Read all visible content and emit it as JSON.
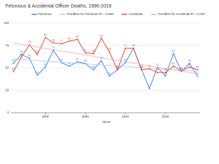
{
  "chart_data": {
    "type": "line",
    "title": "Felonious & Accidental Officer Deaths, 1996-2019",
    "x_label": "YEAR",
    "x": [
      1996,
      1997,
      1998,
      1999,
      2000,
      2001,
      2002,
      2003,
      2004,
      2005,
      2006,
      2007,
      2008,
      2009,
      2010,
      2011,
      2012,
      2013,
      2014,
      2015,
      2016,
      2017,
      2018,
      2019
    ],
    "xlim": [
      1995.7,
      2019.3
    ],
    "xticks": [
      2000,
      2005,
      2010,
      2015
    ],
    "ylim": [
      0,
      100
    ],
    "yticks": [
      0,
      25,
      50,
      75,
      100
    ],
    "grid": true,
    "legend": "top",
    "series": [
      {
        "name": "Felonious",
        "color": "#4285f4",
        "labels": true,
        "values": [
          55,
          65,
          61,
          42,
          51,
          70,
          56,
          52,
          57,
          55,
          48,
          58,
          41,
          48,
          56,
          72,
          49,
          27,
          51,
          41,
          66,
          46,
          55,
          41
        ]
      },
      {
        "name": "Trendline for Felonious R² = 0.663",
        "color": "#a9c6f8",
        "labels": false,
        "values": [
          60,
          59.4,
          58.8,
          58.2,
          57.6,
          57,
          56.4,
          55.8,
          55.2,
          54.6,
          54,
          53.4,
          52.8,
          52.2,
          51.6,
          51,
          50.4,
          49.8,
          49.2,
          48.6,
          48,
          47.4,
          46.8,
          46.2
        ]
      },
      {
        "name": "Accidental",
        "color": "#ea4335",
        "labels": true,
        "values": [
          46,
          62,
          76,
          65,
          84,
          78,
          77,
          80,
          82,
          67,
          66,
          83,
          68,
          48,
          72,
          72,
          48,
          49,
          45,
          45,
          52,
          47,
          51,
          48
        ]
      },
      {
        "name": "Trendline for Accidental R² = 0.267",
        "color": "#f5a59d",
        "labels": false,
        "values": [
          78,
          76.5,
          75,
          73.5,
          72,
          70.5,
          69,
          67.5,
          66,
          64.5,
          63,
          61.5,
          60,
          58.5,
          57,
          55.5,
          54,
          52.5,
          51,
          49.5,
          48,
          46.5,
          45,
          43.5
        ]
      }
    ]
  }
}
